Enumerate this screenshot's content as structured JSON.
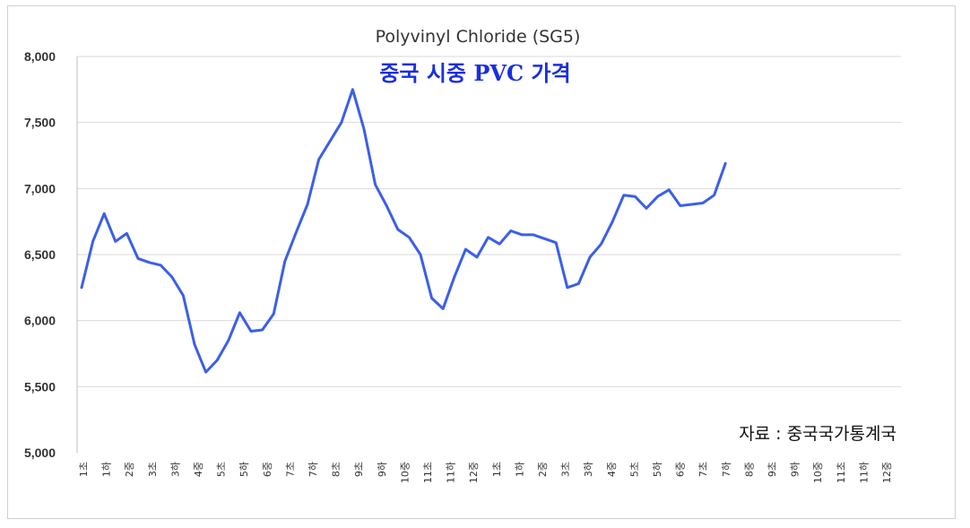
{
  "chart_data": {
    "type": "line",
    "title": "Polyvinyl Chloride (SG5)",
    "subtitle": "중국 시중 PVC 가격",
    "source": "자료 : 중국국가통계국",
    "xlabel": "",
    "ylabel": "",
    "ylim": [
      5000,
      8000
    ],
    "yticks": [
      "5,000",
      "5,500",
      "6,000",
      "6,500",
      "7,000",
      "7,500",
      "8,000"
    ],
    "ytick_values": [
      5000,
      5500,
      6000,
      6500,
      7000,
      7500,
      8000
    ],
    "grid": true,
    "x_tick_labels": [
      "1초",
      "1하",
      "2중",
      "3초",
      "3하",
      "4중",
      "5초",
      "5하",
      "6중",
      "7초",
      "7하",
      "8초",
      "9초",
      "9하",
      "10중",
      "11초",
      "11하",
      "12중",
      "1초",
      "1하",
      "2중",
      "3초",
      "3하",
      "4중",
      "5초",
      "5하",
      "6중",
      "7초",
      "7하",
      "8중",
      "9초",
      "9하",
      "10중",
      "11초",
      "11하",
      "12중"
    ],
    "series": [
      {
        "color": "#3b5fe8",
        "values": [
          6250,
          6600,
          6810,
          6600,
          6660,
          6470,
          6440,
          6420,
          6330,
          6190,
          5820,
          5610,
          5700,
          5850,
          6060,
          5920,
          5930,
          6050,
          6450,
          6670,
          6880,
          7220,
          7360,
          7500,
          7750,
          7450,
          7030,
          6870,
          6690,
          6630,
          6500,
          6170,
          6090,
          6330,
          6540,
          6480,
          6630,
          6580,
          6680,
          6650,
          6650,
          6620,
          6590,
          6250,
          6280,
          6480,
          6580,
          6750,
          6950,
          6940,
          6850,
          6940,
          6990,
          6870,
          6880,
          6890,
          6950,
          7190
        ]
      }
    ]
  }
}
